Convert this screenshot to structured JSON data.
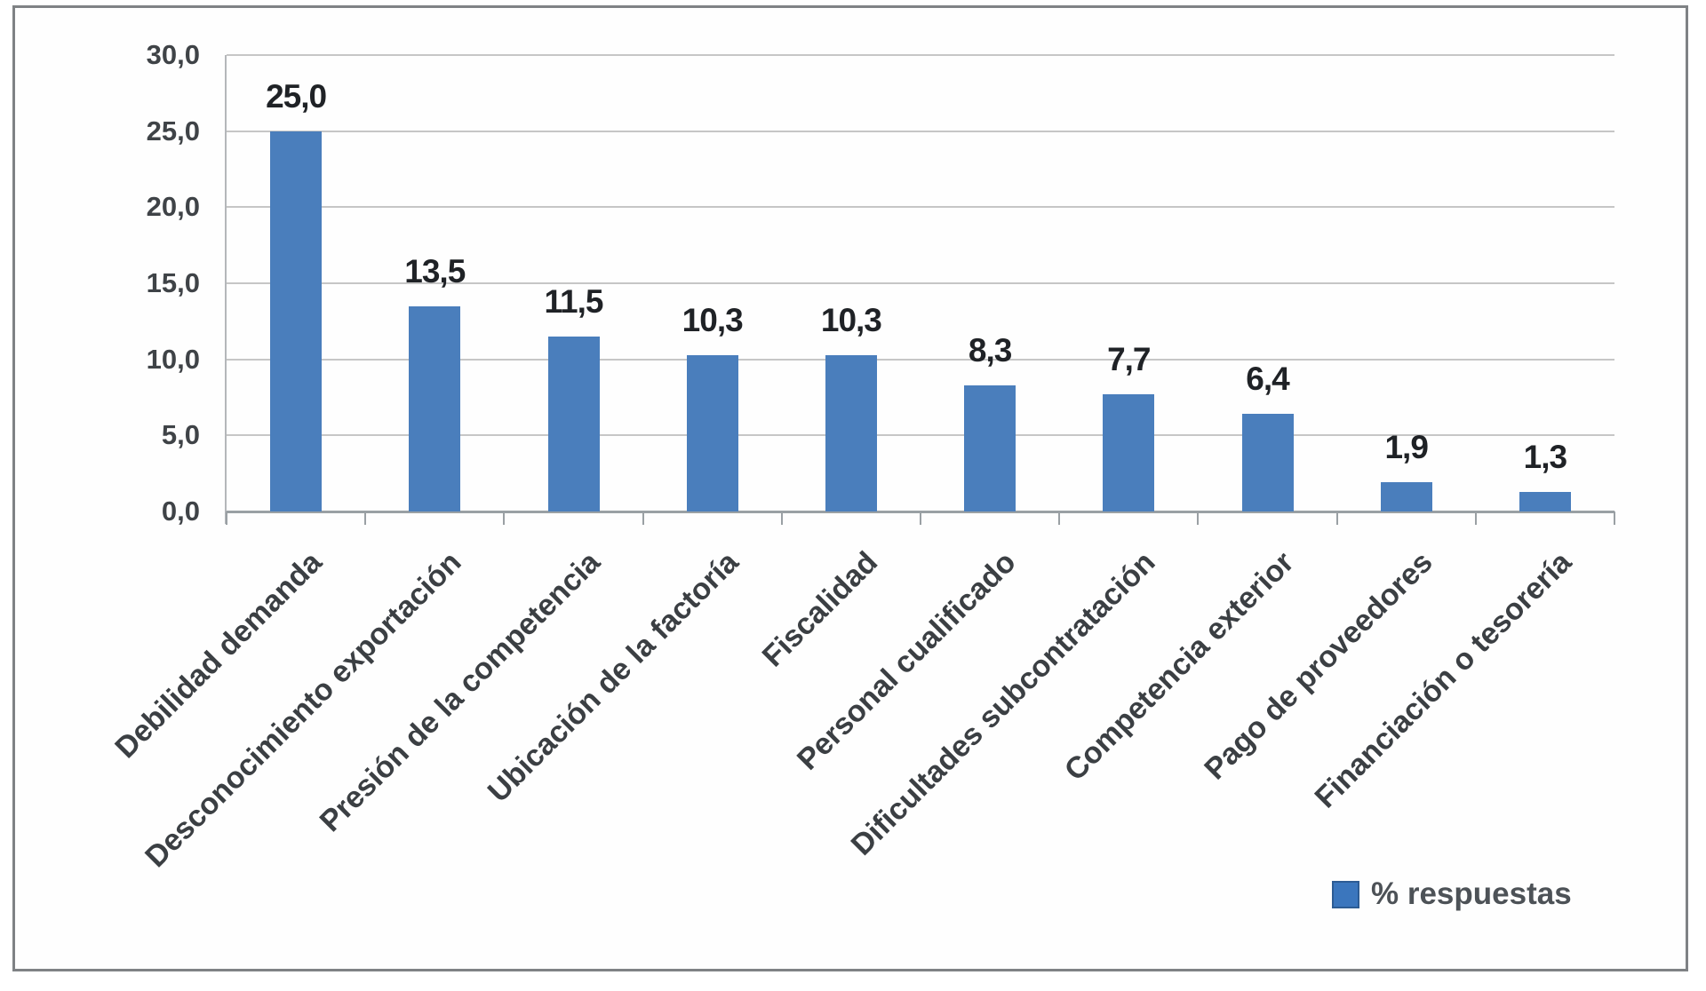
{
  "chart_data": {
    "type": "bar",
    "title": "",
    "xlabel": "",
    "ylabel": "",
    "categories": [
      "Debilidad demanda",
      "Desconocimiento exportación",
      "Presión de la competencia",
      "Ubicación de la factoría",
      "Fiscalidad",
      "Personal cualificado",
      "Dificultades subcontratación",
      "Competencia exterior",
      "Pago de proveedores",
      "Financiación o tesorería"
    ],
    "series": [
      {
        "name": "% respuestas",
        "values": [
          25.0,
          13.5,
          11.5,
          10.3,
          10.3,
          8.3,
          7.7,
          6.4,
          1.9,
          1.3
        ]
      }
    ],
    "value_labels": [
      "25,0",
      "13,5",
      "11,5",
      "10,3",
      "10,3",
      "8,3",
      "7,7",
      "6,4",
      "1,9",
      "1,3"
    ],
    "ylim": [
      0,
      30
    ],
    "yticks": [
      {
        "v": 30,
        "label": "30,0"
      },
      {
        "v": 25,
        "label": "25,0"
      },
      {
        "v": 20,
        "label": "20,0"
      },
      {
        "v": 15,
        "label": "15,0"
      },
      {
        "v": 10,
        "label": "10,0"
      },
      {
        "v": 5,
        "label": "5,0"
      },
      {
        "v": 0,
        "label": "0,0"
      }
    ],
    "grid": true,
    "legend": {
      "label": "% respuestas",
      "position": "bottom-right"
    },
    "bar_color": "#4a7ebc",
    "legend_swatch_color": "#3b76bd"
  }
}
